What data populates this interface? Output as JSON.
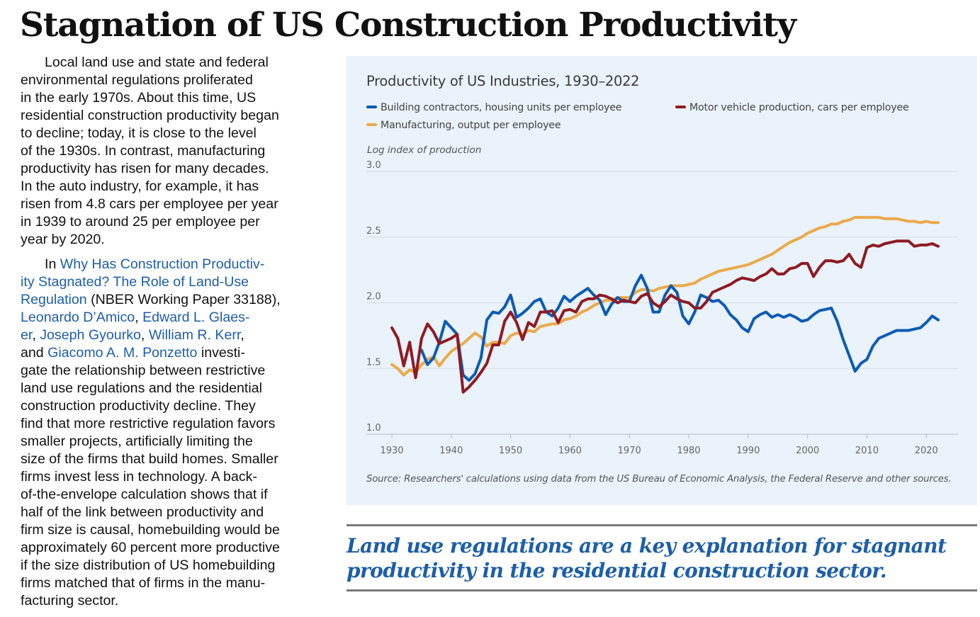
{
  "headline": "Stagnation of US Construction Productivity",
  "article": {
    "p1": [
      "Local land use and state and federal",
      "environmental regulations proliferated",
      "in the early 1970s. About this time, US",
      "residential construction productivity began",
      "to decline; today, it is close to the level",
      "of the 1930s. In contrast, manufacturing",
      "productivity has risen for many decades.",
      "In the auto industry, for example, it has",
      "risen from 4.8 cars per employee per year",
      "in 1939 to around 25 per employee per",
      "year by 2020."
    ],
    "p2": {
      "l1_a": "In ",
      "l1_link": "Why Has Construction Productiv-",
      "l2_link": "ity Stagnated? The Role of Land-Use",
      "l3_link": "Regulation",
      "l3_b": " (NBER Working Paper 33188),",
      "l4_link1": "Leonardo D’Amico",
      "l4_sep": ", ",
      "l4_link2": "Edward L. Glaes-",
      "l5_link1": "er",
      "l5_sep1": ", ",
      "l5_link2": "Joseph Gyourko",
      "l5_sep2": ", ",
      "l5_link3": "William R. Kerr",
      "l5_sep3": ",",
      "l6_a": "and ",
      "l6_link": "Giacomo A. M. Ponzetto",
      "l6_b": " investi-",
      "rest": [
        "gate the relationship between restrictive",
        "land use regulations and the residential",
        "construction productivity decline. They",
        "find that more restrictive regulation favors",
        "smaller projects, artificially limiting the",
        "size of the firms that build homes. Smaller",
        "firms invest less in technology. A back-",
        "of-the-envelope calculation shows that if",
        "half of the link between productivity and",
        "firm size is causal, homebuilding would be",
        "approximately 60 percent more productive",
        "if  the size distribution of US homebuilding",
        "firms matched that of firms in the manu-",
        "facturing sector."
      ]
    }
  },
  "pull_quote": "Land use regulations are a key explanation for stagnant productivity in the residential construction sector.",
  "chart_data": {
    "type": "line",
    "title": "Productivity of US Industries, 1930–2022",
    "ylabel": "Log index of production",
    "xlabel": "",
    "xlim": [
      1930,
      2022
    ],
    "ylim": [
      1.0,
      3.0
    ],
    "xticks": [
      1930,
      1940,
      1950,
      1960,
      1970,
      1980,
      1990,
      2000,
      2010,
      2020
    ],
    "yticks": [
      1.0,
      1.5,
      2.0,
      2.5,
      3.0
    ],
    "ytick_labels": [
      "1.0",
      "1.5",
      "2.0",
      "2.5",
      "3.0"
    ],
    "grid": "horizontal",
    "legend_position": "top",
    "source": "Source: Researchers' calculations using data from the US Bureau of Economic Analysis, the Federal Reserve and other sources.",
    "series": [
      {
        "name": "Building contractors, housing units per employee",
        "color": "#0c5bb5",
        "x": [
          1935,
          1936,
          1937,
          1938,
          1939,
          1940,
          1941,
          1942,
          1943,
          1944,
          1945,
          1946,
          1947,
          1948,
          1949,
          1950,
          1951,
          1952,
          1953,
          1954,
          1955,
          1956,
          1957,
          1958,
          1959,
          1960,
          1961,
          1962,
          1963,
          1964,
          1965,
          1966,
          1967,
          1968,
          1969,
          1970,
          1971,
          1972,
          1973,
          1974,
          1975,
          1976,
          1977,
          1978,
          1979,
          1980,
          1981,
          1982,
          1983,
          1984,
          1985,
          1986,
          1987,
          1988,
          1989,
          1990,
          1991,
          1992,
          1993,
          1994,
          1995,
          1996,
          1997,
          1998,
          1999,
          2000,
          2001,
          2002,
          2003,
          2004,
          2005,
          2006,
          2007,
          2008,
          2009,
          2010,
          2011,
          2012,
          2013,
          2014,
          2015,
          2016,
          2017,
          2018,
          2019,
          2020,
          2021,
          2022
        ],
        "values": [
          1.64,
          1.53,
          1.58,
          1.7,
          1.86,
          1.81,
          1.76,
          1.45,
          1.41,
          1.46,
          1.58,
          1.87,
          1.93,
          1.92,
          1.97,
          2.06,
          1.89,
          1.92,
          1.96,
          2.01,
          2.03,
          1.93,
          1.9,
          1.96,
          2.05,
          2.01,
          2.05,
          2.08,
          2.11,
          2.06,
          2.02,
          1.91,
          1.99,
          2.04,
          2.01,
          2.01,
          2.13,
          2.21,
          2.11,
          1.93,
          1.93,
          2.06,
          2.13,
          2.08,
          1.9,
          1.84,
          1.93,
          2.06,
          2.04,
          2.01,
          2.02,
          1.98,
          1.91,
          1.87,
          1.81,
          1.78,
          1.88,
          1.91,
          1.93,
          1.89,
          1.91,
          1.89,
          1.91,
          1.89,
          1.86,
          1.87,
          1.91,
          1.94,
          1.95,
          1.96,
          1.86,
          1.72,
          1.6,
          1.48,
          1.54,
          1.57,
          1.67,
          1.73,
          1.75,
          1.77,
          1.79,
          1.79,
          1.79,
          1.8,
          1.81,
          1.85,
          1.9,
          1.87
        ]
      },
      {
        "name": "Motor vehicle production, cars per employee",
        "color": "#8e1b22",
        "x": [
          1930,
          1931,
          1932,
          1933,
          1934,
          1935,
          1936,
          1937,
          1938,
          1939,
          1940,
          1941,
          1942,
          1943,
          1944,
          1945,
          1946,
          1947,
          1948,
          1949,
          1950,
          1951,
          1952,
          1953,
          1954,
          1955,
          1956,
          1957,
          1958,
          1959,
          1960,
          1961,
          1962,
          1963,
          1964,
          1965,
          1966,
          1967,
          1968,
          1969,
          1970,
          1971,
          1972,
          1973,
          1974,
          1975,
          1976,
          1977,
          1978,
          1979,
          1980,
          1981,
          1982,
          1983,
          1984,
          1985,
          1986,
          1987,
          1988,
          1989,
          1990,
          1991,
          1992,
          1993,
          1994,
          1995,
          1996,
          1997,
          1998,
          1999,
          2000,
          2001,
          2002,
          2003,
          2004,
          2005,
          2006,
          2007,
          2008,
          2009,
          2010,
          2011,
          2012,
          2013,
          2014,
          2015,
          2016,
          2017,
          2018,
          2019,
          2020,
          2021,
          2022
        ],
        "values": [
          1.81,
          1.73,
          1.52,
          1.7,
          1.43,
          1.73,
          1.84,
          1.78,
          1.69,
          1.71,
          1.73,
          1.76,
          1.32,
          1.36,
          1.41,
          1.47,
          1.54,
          1.68,
          1.68,
          1.86,
          1.93,
          1.85,
          1.72,
          1.85,
          1.82,
          1.93,
          1.93,
          1.94,
          1.85,
          1.94,
          1.95,
          1.93,
          2.01,
          2.03,
          2.03,
          2.06,
          2.05,
          2.03,
          2.0,
          2.02,
          2.01,
          2.0,
          2.05,
          2.07,
          2.0,
          1.97,
          2.01,
          2.06,
          2.03,
          2.01,
          2.0,
          1.96,
          1.96,
          2.01,
          2.08,
          2.1,
          2.12,
          2.14,
          2.17,
          2.19,
          2.18,
          2.17,
          2.2,
          2.22,
          2.26,
          2.22,
          2.22,
          2.26,
          2.27,
          2.3,
          2.3,
          2.2,
          2.27,
          2.32,
          2.32,
          2.31,
          2.32,
          2.37,
          2.3,
          2.27,
          2.42,
          2.44,
          2.43,
          2.45,
          2.46,
          2.47,
          2.47,
          2.47,
          2.43,
          2.44,
          2.44,
          2.45,
          2.43
        ]
      },
      {
        "name": "Manufacturing, output per employee",
        "color": "#eaaa4b",
        "x": [
          1930,
          1931,
          1932,
          1933,
          1934,
          1935,
          1936,
          1937,
          1938,
          1939,
          1940,
          1941,
          1942,
          1943,
          1944,
          1945,
          1946,
          1947,
          1948,
          1949,
          1950,
          1951,
          1952,
          1953,
          1954,
          1955,
          1956,
          1957,
          1958,
          1959,
          1960,
          1961,
          1962,
          1963,
          1964,
          1965,
          1966,
          1967,
          1968,
          1969,
          1970,
          1971,
          1972,
          1973,
          1974,
          1975,
          1976,
          1977,
          1978,
          1979,
          1980,
          1981,
          1982,
          1983,
          1984,
          1985,
          1986,
          1987,
          1988,
          1989,
          1990,
          1991,
          1992,
          1993,
          1994,
          1995,
          1996,
          1997,
          1998,
          1999,
          2000,
          2001,
          2002,
          2003,
          2004,
          2005,
          2006,
          2007,
          2008,
          2009,
          2010,
          2011,
          2012,
          2013,
          2014,
          2015,
          2016,
          2017,
          2018,
          2019,
          2020,
          2021,
          2022
        ],
        "values": [
          1.53,
          1.5,
          1.45,
          1.49,
          1.47,
          1.53,
          1.57,
          1.59,
          1.52,
          1.58,
          1.63,
          1.66,
          1.69,
          1.73,
          1.77,
          1.74,
          1.67,
          1.7,
          1.7,
          1.69,
          1.75,
          1.77,
          1.76,
          1.79,
          1.78,
          1.82,
          1.83,
          1.84,
          1.84,
          1.87,
          1.88,
          1.9,
          1.93,
          1.95,
          1.98,
          2.0,
          2.02,
          2.02,
          2.04,
          2.04,
          2.04,
          2.08,
          2.1,
          2.1,
          2.09,
          2.11,
          2.12,
          2.13,
          2.13,
          2.13,
          2.14,
          2.15,
          2.18,
          2.2,
          2.22,
          2.24,
          2.25,
          2.26,
          2.27,
          2.28,
          2.29,
          2.31,
          2.33,
          2.35,
          2.37,
          2.4,
          2.43,
          2.46,
          2.48,
          2.5,
          2.53,
          2.55,
          2.57,
          2.58,
          2.6,
          2.6,
          2.62,
          2.63,
          2.65,
          2.65,
          2.65,
          2.65,
          2.65,
          2.64,
          2.64,
          2.64,
          2.63,
          2.62,
          2.62,
          2.61,
          2.62,
          2.61,
          2.61
        ]
      }
    ]
  }
}
